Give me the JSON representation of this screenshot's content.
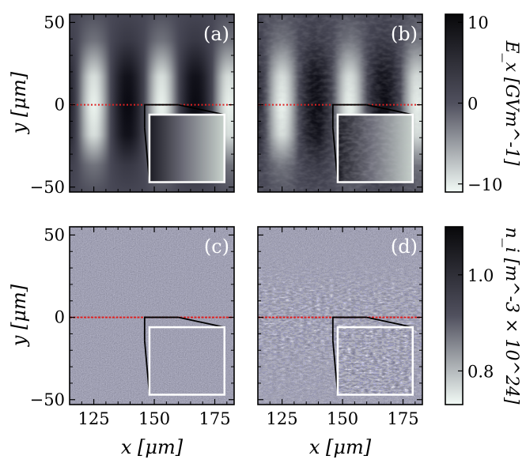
{
  "chart_data": {
    "type": "heatmap",
    "panels": [
      {
        "label": "(a)",
        "field": "Ex",
        "style": "smooth"
      },
      {
        "label": "(b)",
        "field": "Ex",
        "style": "rippled"
      },
      {
        "label": "(c)",
        "field": "ni",
        "style": "noise"
      },
      {
        "label": "(d)",
        "field": "ni",
        "style": "structured-noise"
      }
    ],
    "xlabel": "x [μm]",
    "ylabel": "y [μm]",
    "xlim": [
      115,
      183
    ],
    "ylim": [
      -53,
      55
    ],
    "xticks": [
      125,
      150,
      175
    ],
    "yticks": [
      50,
      0,
      -50
    ],
    "colorbars": [
      {
        "label": "E_x [GVm^-1]",
        "ticks": [
          10,
          0,
          -10
        ],
        "range": [
          -11,
          11
        ]
      },
      {
        "label": "n_i [m^-3 × 10^24]",
        "ticks": [
          1.0,
          0.8
        ],
        "range": [
          0.73,
          1.1
        ]
      }
    ],
    "reference_line_y": 0,
    "reference_line_color": "#dd2222",
    "inset_frame_color": "#ffffff"
  }
}
